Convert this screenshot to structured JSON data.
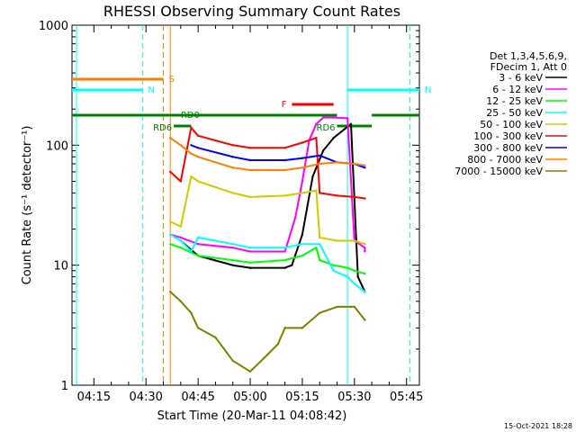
{
  "chart_data": {
    "type": "line",
    "title": "RHESSI Observing Summary Count Rates",
    "xlabel": "Start Time (20-Mar-11 04:08:42)",
    "ylabel": "Count Rate (s⁻¹ detector⁻¹)",
    "y_scale": "log",
    "ylim": [
      1,
      1000
    ],
    "xlim": [
      "04:08:42",
      "05:48:42"
    ],
    "y_ticks": [
      {
        "value": 1,
        "label": "1"
      },
      {
        "value": 10,
        "label": "10"
      },
      {
        "value": 100,
        "label": "100"
      },
      {
        "value": 1000,
        "label": "1000"
      }
    ],
    "x_ticks": [
      "04:15",
      "04:30",
      "04:45",
      "05:00",
      "05:15",
      "05:30",
      "05:45"
    ],
    "legend_header": [
      "Det 1,3,4,5,6,9,",
      "FDecim 1, Att 0"
    ],
    "legend_position": "right",
    "series": [
      {
        "name": "3 - 6 keV",
        "color": "#000000",
        "x": [
          "04:40",
          "04:45",
          "04:55",
          "05:00",
          "05:10",
          "05:12",
          "05:15",
          "05:18",
          "05:21",
          "05:24",
          "05:27",
          "05:29",
          "05:31",
          "05:33",
          "05:33"
        ],
        "values": [
          16,
          12,
          10,
          9.5,
          9.5,
          10,
          18,
          55,
          90,
          115,
          135,
          150,
          8,
          6,
          6
        ]
      },
      {
        "name": "6 - 12 keV",
        "color": "#ff00ff",
        "x": [
          "04:37",
          "04:40",
          "04:45",
          "04:55",
          "05:00",
          "05:10",
          "05:13",
          "05:15",
          "05:17",
          "05:19",
          "05:21",
          "05:24",
          "05:28",
          "05:30",
          "05:33",
          "05:33"
        ],
        "values": [
          18,
          17,
          15,
          14,
          13,
          13,
          25,
          50,
          110,
          150,
          170,
          170,
          168,
          16,
          14,
          13
        ]
      },
      {
        "name": "12 - 25 keV",
        "color": "#00ff00",
        "x": [
          "04:37",
          "04:40",
          "04:45",
          "04:55",
          "05:00",
          "05:10",
          "05:15",
          "05:19",
          "05:20",
          "05:24",
          "05:28",
          "05:30",
          "05:33"
        ],
        "values": [
          15,
          14,
          12,
          11,
          10.5,
          11,
          12,
          14,
          11,
          10,
          9.5,
          9,
          8.5
        ]
      },
      {
        "name": "25 - 50 keV",
        "color": "#00ffff",
        "x": [
          "04:37",
          "04:40",
          "04:43",
          "04:45",
          "04:55",
          "05:00",
          "05:10",
          "05:15",
          "05:20",
          "05:24",
          "05:28",
          "05:30",
          "05:33"
        ],
        "values": [
          18,
          16,
          13,
          17,
          15,
          14,
          14,
          15,
          15,
          9,
          8,
          7,
          6
        ]
      },
      {
        "name": "50 - 100 keV",
        "color": "#cccc00",
        "x": [
          "04:37",
          "04:40",
          "04:43",
          "04:45",
          "04:55",
          "05:00",
          "05:10",
          "05:15",
          "05:19",
          "05:20",
          "05:25",
          "05:30",
          "05:33"
        ],
        "values": [
          23,
          21,
          55,
          50,
          40,
          37,
          38,
          40,
          42,
          17,
          16,
          16,
          15
        ]
      },
      {
        "name": "100 - 300 keV",
        "color": "#ff0000",
        "x": [
          "04:37",
          "04:40",
          "04:43",
          "04:45",
          "04:55",
          "05:00",
          "05:10",
          "05:15",
          "05:19",
          "05:20",
          "05:25",
          "05:30",
          "05:33"
        ],
        "values": [
          60,
          50,
          140,
          120,
          100,
          95,
          95,
          105,
          115,
          40,
          38,
          37,
          36
        ]
      },
      {
        "name": "300 - 800 keV",
        "color": "#0000ff",
        "x": [
          "04:43",
          "04:45",
          "04:55",
          "05:00",
          "05:10",
          "05:15",
          "05:20",
          "05:25",
          "05:30",
          "05:33"
        ],
        "values": [
          100,
          95,
          80,
          75,
          75,
          78,
          82,
          72,
          70,
          65
        ]
      },
      {
        "name": "800 - 7000 keV",
        "color": "#ff8000",
        "x": [
          "04:37",
          "04:40",
          "04:43",
          "04:45",
          "04:55",
          "05:00",
          "05:10",
          "05:15",
          "05:20",
          "05:25",
          "05:30",
          "05:33"
        ],
        "values": [
          115,
          100,
          85,
          80,
          65,
          62,
          62,
          65,
          70,
          72,
          70,
          68
        ]
      },
      {
        "name": "7000 - 15000 keV",
        "color": "#808000",
        "x": [
          "04:37",
          "04:40",
          "04:43",
          "04:45",
          "04:50",
          "04:55",
          "05:00",
          "05:05",
          "05:08",
          "05:10",
          "05:15",
          "05:20",
          "05:25",
          "05:30",
          "05:33"
        ],
        "values": [
          6,
          5,
          4,
          3,
          2.5,
          1.6,
          1.3,
          1.8,
          2.2,
          3,
          3,
          4,
          4.5,
          4.5,
          3.5
        ]
      }
    ],
    "status_bars": [
      {
        "label": "S",
        "color": "#ff8000",
        "x": [
          "04:08:42",
          "04:35"
        ],
        "level": 0.85
      },
      {
        "label": "N",
        "color": "#00ffff",
        "x": [
          "04:08:42",
          "04:29"
        ],
        "level": 0.82
      },
      {
        "label": "N",
        "color": "#00ffff",
        "x": [
          "05:28",
          "05:48:42"
        ],
        "level": 0.82
      },
      {
        "label": "F",
        "color": "#ff0000",
        "x": [
          "05:12",
          "05:24"
        ],
        "level": 0.78
      },
      {
        "label": "RD0",
        "color": "#008000",
        "x": [
          "04:08:42",
          "05:25"
        ],
        "level": 0.75
      },
      {
        "label": "RD0",
        "color": "#008000",
        "x": [
          "05:35",
          "05:48:42"
        ],
        "level": 0.75
      },
      {
        "label": "RD6",
        "color": "#008000",
        "x": [
          "04:38",
          "04:43"
        ],
        "level": 0.72
      },
      {
        "label": "RD6",
        "color": "#008000",
        "x": [
          "05:25",
          "05:35"
        ],
        "level": 0.72
      }
    ],
    "vlines": [
      {
        "x": "04:10",
        "color": "#00ffff",
        "style": "solid"
      },
      {
        "x": "04:29",
        "color": "#00ffff",
        "style": "dashed"
      },
      {
        "x": "04:35",
        "color": "#ff8000",
        "style": "dashed"
      },
      {
        "x": "04:37",
        "color": "#ff8000",
        "style": "solid"
      },
      {
        "x": "05:28",
        "color": "#00ffff",
        "style": "solid"
      },
      {
        "x": "05:46",
        "color": "#00ffff",
        "style": "dashed"
      }
    ],
    "timestamp": "15-Oct-2021 18:28"
  }
}
